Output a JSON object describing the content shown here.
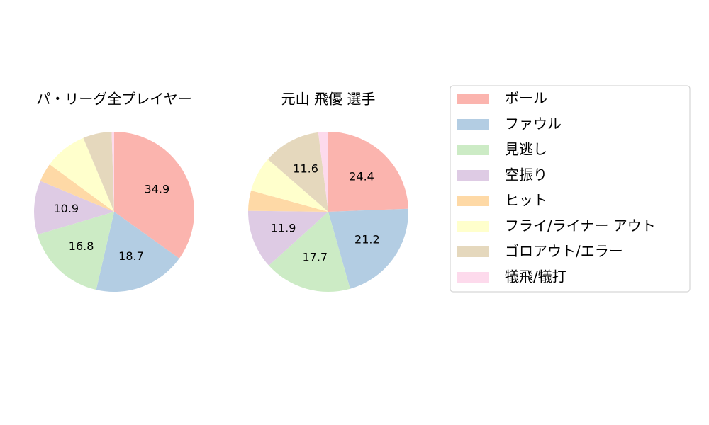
{
  "chart_data": [
    {
      "type": "pie",
      "title": "パ・リーグ全プレイヤー",
      "categories": [
        "ボール",
        "ファウル",
        "見逃し",
        "空振り",
        "ヒット",
        "フライ/ライナー アウト",
        "ゴロアウト/エラー",
        "犠飛/犠打"
      ],
      "values": [
        34.9,
        18.7,
        16.8,
        10.9,
        3.8,
        8.6,
        5.8,
        0.5
      ],
      "value_labels": [
        "34.9",
        "18.7",
        "16.8",
        "10.9",
        null,
        null,
        null,
        null
      ],
      "colors": [
        "#fbb4ae",
        "#b3cde3",
        "#ccebc5",
        "#decbe4",
        "#fed9a6",
        "#ffffcc",
        "#e5d8bd",
        "#fddaec"
      ],
      "legend": "right"
    },
    {
      "type": "pie",
      "title": "元山 飛優  選手",
      "categories": [
        "ボール",
        "ファウル",
        "見逃し",
        "空振り",
        "ヒット",
        "フライ/ライナー アウト",
        "ゴロアウト/エラー",
        "犠飛/犠打"
      ],
      "values": [
        24.4,
        21.2,
        17.7,
        11.9,
        4.1,
        7.1,
        11.6,
        2.0
      ],
      "value_labels": [
        "24.4",
        "21.2",
        "17.7",
        "11.9",
        null,
        null,
        "11.6",
        null
      ],
      "colors": [
        "#fbb4ae",
        "#b3cde3",
        "#ccebc5",
        "#decbe4",
        "#fed9a6",
        "#ffffcc",
        "#e5d8bd",
        "#fddaec"
      ]
    }
  ]
}
